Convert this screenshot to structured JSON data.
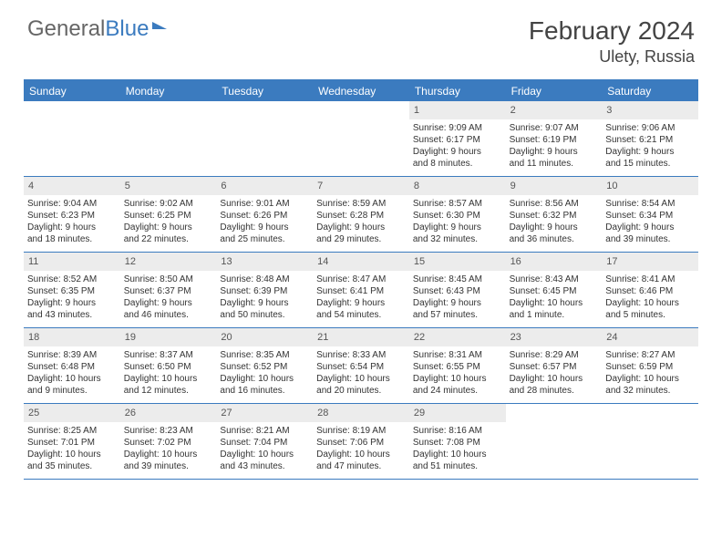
{
  "brand": {
    "part1": "General",
    "part2": "Blue"
  },
  "title": "February 2024",
  "location": "Ulety, Russia",
  "colors": {
    "accent": "#3b7bbf",
    "daynum_bg": "#ececec",
    "text": "#333333",
    "muted": "#666666"
  },
  "daysOfWeek": [
    "Sunday",
    "Monday",
    "Tuesday",
    "Wednesday",
    "Thursday",
    "Friday",
    "Saturday"
  ],
  "weeks": [
    [
      {
        "n": "",
        "empty": true
      },
      {
        "n": "",
        "empty": true
      },
      {
        "n": "",
        "empty": true
      },
      {
        "n": "",
        "empty": true
      },
      {
        "n": "1",
        "sr": "Sunrise: 9:09 AM",
        "ss": "Sunset: 6:17 PM",
        "d1": "Daylight: 9 hours",
        "d2": "and 8 minutes."
      },
      {
        "n": "2",
        "sr": "Sunrise: 9:07 AM",
        "ss": "Sunset: 6:19 PM",
        "d1": "Daylight: 9 hours",
        "d2": "and 11 minutes."
      },
      {
        "n": "3",
        "sr": "Sunrise: 9:06 AM",
        "ss": "Sunset: 6:21 PM",
        "d1": "Daylight: 9 hours",
        "d2": "and 15 minutes."
      }
    ],
    [
      {
        "n": "4",
        "sr": "Sunrise: 9:04 AM",
        "ss": "Sunset: 6:23 PM",
        "d1": "Daylight: 9 hours",
        "d2": "and 18 minutes."
      },
      {
        "n": "5",
        "sr": "Sunrise: 9:02 AM",
        "ss": "Sunset: 6:25 PM",
        "d1": "Daylight: 9 hours",
        "d2": "and 22 minutes."
      },
      {
        "n": "6",
        "sr": "Sunrise: 9:01 AM",
        "ss": "Sunset: 6:26 PM",
        "d1": "Daylight: 9 hours",
        "d2": "and 25 minutes."
      },
      {
        "n": "7",
        "sr": "Sunrise: 8:59 AM",
        "ss": "Sunset: 6:28 PM",
        "d1": "Daylight: 9 hours",
        "d2": "and 29 minutes."
      },
      {
        "n": "8",
        "sr": "Sunrise: 8:57 AM",
        "ss": "Sunset: 6:30 PM",
        "d1": "Daylight: 9 hours",
        "d2": "and 32 minutes."
      },
      {
        "n": "9",
        "sr": "Sunrise: 8:56 AM",
        "ss": "Sunset: 6:32 PM",
        "d1": "Daylight: 9 hours",
        "d2": "and 36 minutes."
      },
      {
        "n": "10",
        "sr": "Sunrise: 8:54 AM",
        "ss": "Sunset: 6:34 PM",
        "d1": "Daylight: 9 hours",
        "d2": "and 39 minutes."
      }
    ],
    [
      {
        "n": "11",
        "sr": "Sunrise: 8:52 AM",
        "ss": "Sunset: 6:35 PM",
        "d1": "Daylight: 9 hours",
        "d2": "and 43 minutes."
      },
      {
        "n": "12",
        "sr": "Sunrise: 8:50 AM",
        "ss": "Sunset: 6:37 PM",
        "d1": "Daylight: 9 hours",
        "d2": "and 46 minutes."
      },
      {
        "n": "13",
        "sr": "Sunrise: 8:48 AM",
        "ss": "Sunset: 6:39 PM",
        "d1": "Daylight: 9 hours",
        "d2": "and 50 minutes."
      },
      {
        "n": "14",
        "sr": "Sunrise: 8:47 AM",
        "ss": "Sunset: 6:41 PM",
        "d1": "Daylight: 9 hours",
        "d2": "and 54 minutes."
      },
      {
        "n": "15",
        "sr": "Sunrise: 8:45 AM",
        "ss": "Sunset: 6:43 PM",
        "d1": "Daylight: 9 hours",
        "d2": "and 57 minutes."
      },
      {
        "n": "16",
        "sr": "Sunrise: 8:43 AM",
        "ss": "Sunset: 6:45 PM",
        "d1": "Daylight: 10 hours",
        "d2": "and 1 minute."
      },
      {
        "n": "17",
        "sr": "Sunrise: 8:41 AM",
        "ss": "Sunset: 6:46 PM",
        "d1": "Daylight: 10 hours",
        "d2": "and 5 minutes."
      }
    ],
    [
      {
        "n": "18",
        "sr": "Sunrise: 8:39 AM",
        "ss": "Sunset: 6:48 PM",
        "d1": "Daylight: 10 hours",
        "d2": "and 9 minutes."
      },
      {
        "n": "19",
        "sr": "Sunrise: 8:37 AM",
        "ss": "Sunset: 6:50 PM",
        "d1": "Daylight: 10 hours",
        "d2": "and 12 minutes."
      },
      {
        "n": "20",
        "sr": "Sunrise: 8:35 AM",
        "ss": "Sunset: 6:52 PM",
        "d1": "Daylight: 10 hours",
        "d2": "and 16 minutes."
      },
      {
        "n": "21",
        "sr": "Sunrise: 8:33 AM",
        "ss": "Sunset: 6:54 PM",
        "d1": "Daylight: 10 hours",
        "d2": "and 20 minutes."
      },
      {
        "n": "22",
        "sr": "Sunrise: 8:31 AM",
        "ss": "Sunset: 6:55 PM",
        "d1": "Daylight: 10 hours",
        "d2": "and 24 minutes."
      },
      {
        "n": "23",
        "sr": "Sunrise: 8:29 AM",
        "ss": "Sunset: 6:57 PM",
        "d1": "Daylight: 10 hours",
        "d2": "and 28 minutes."
      },
      {
        "n": "24",
        "sr": "Sunrise: 8:27 AM",
        "ss": "Sunset: 6:59 PM",
        "d1": "Daylight: 10 hours",
        "d2": "and 32 minutes."
      }
    ],
    [
      {
        "n": "25",
        "sr": "Sunrise: 8:25 AM",
        "ss": "Sunset: 7:01 PM",
        "d1": "Daylight: 10 hours",
        "d2": "and 35 minutes."
      },
      {
        "n": "26",
        "sr": "Sunrise: 8:23 AM",
        "ss": "Sunset: 7:02 PM",
        "d1": "Daylight: 10 hours",
        "d2": "and 39 minutes."
      },
      {
        "n": "27",
        "sr": "Sunrise: 8:21 AM",
        "ss": "Sunset: 7:04 PM",
        "d1": "Daylight: 10 hours",
        "d2": "and 43 minutes."
      },
      {
        "n": "28",
        "sr": "Sunrise: 8:19 AM",
        "ss": "Sunset: 7:06 PM",
        "d1": "Daylight: 10 hours",
        "d2": "and 47 minutes."
      },
      {
        "n": "29",
        "sr": "Sunrise: 8:16 AM",
        "ss": "Sunset: 7:08 PM",
        "d1": "Daylight: 10 hours",
        "d2": "and 51 minutes."
      },
      {
        "n": "",
        "empty": true
      },
      {
        "n": "",
        "empty": true
      }
    ]
  ]
}
